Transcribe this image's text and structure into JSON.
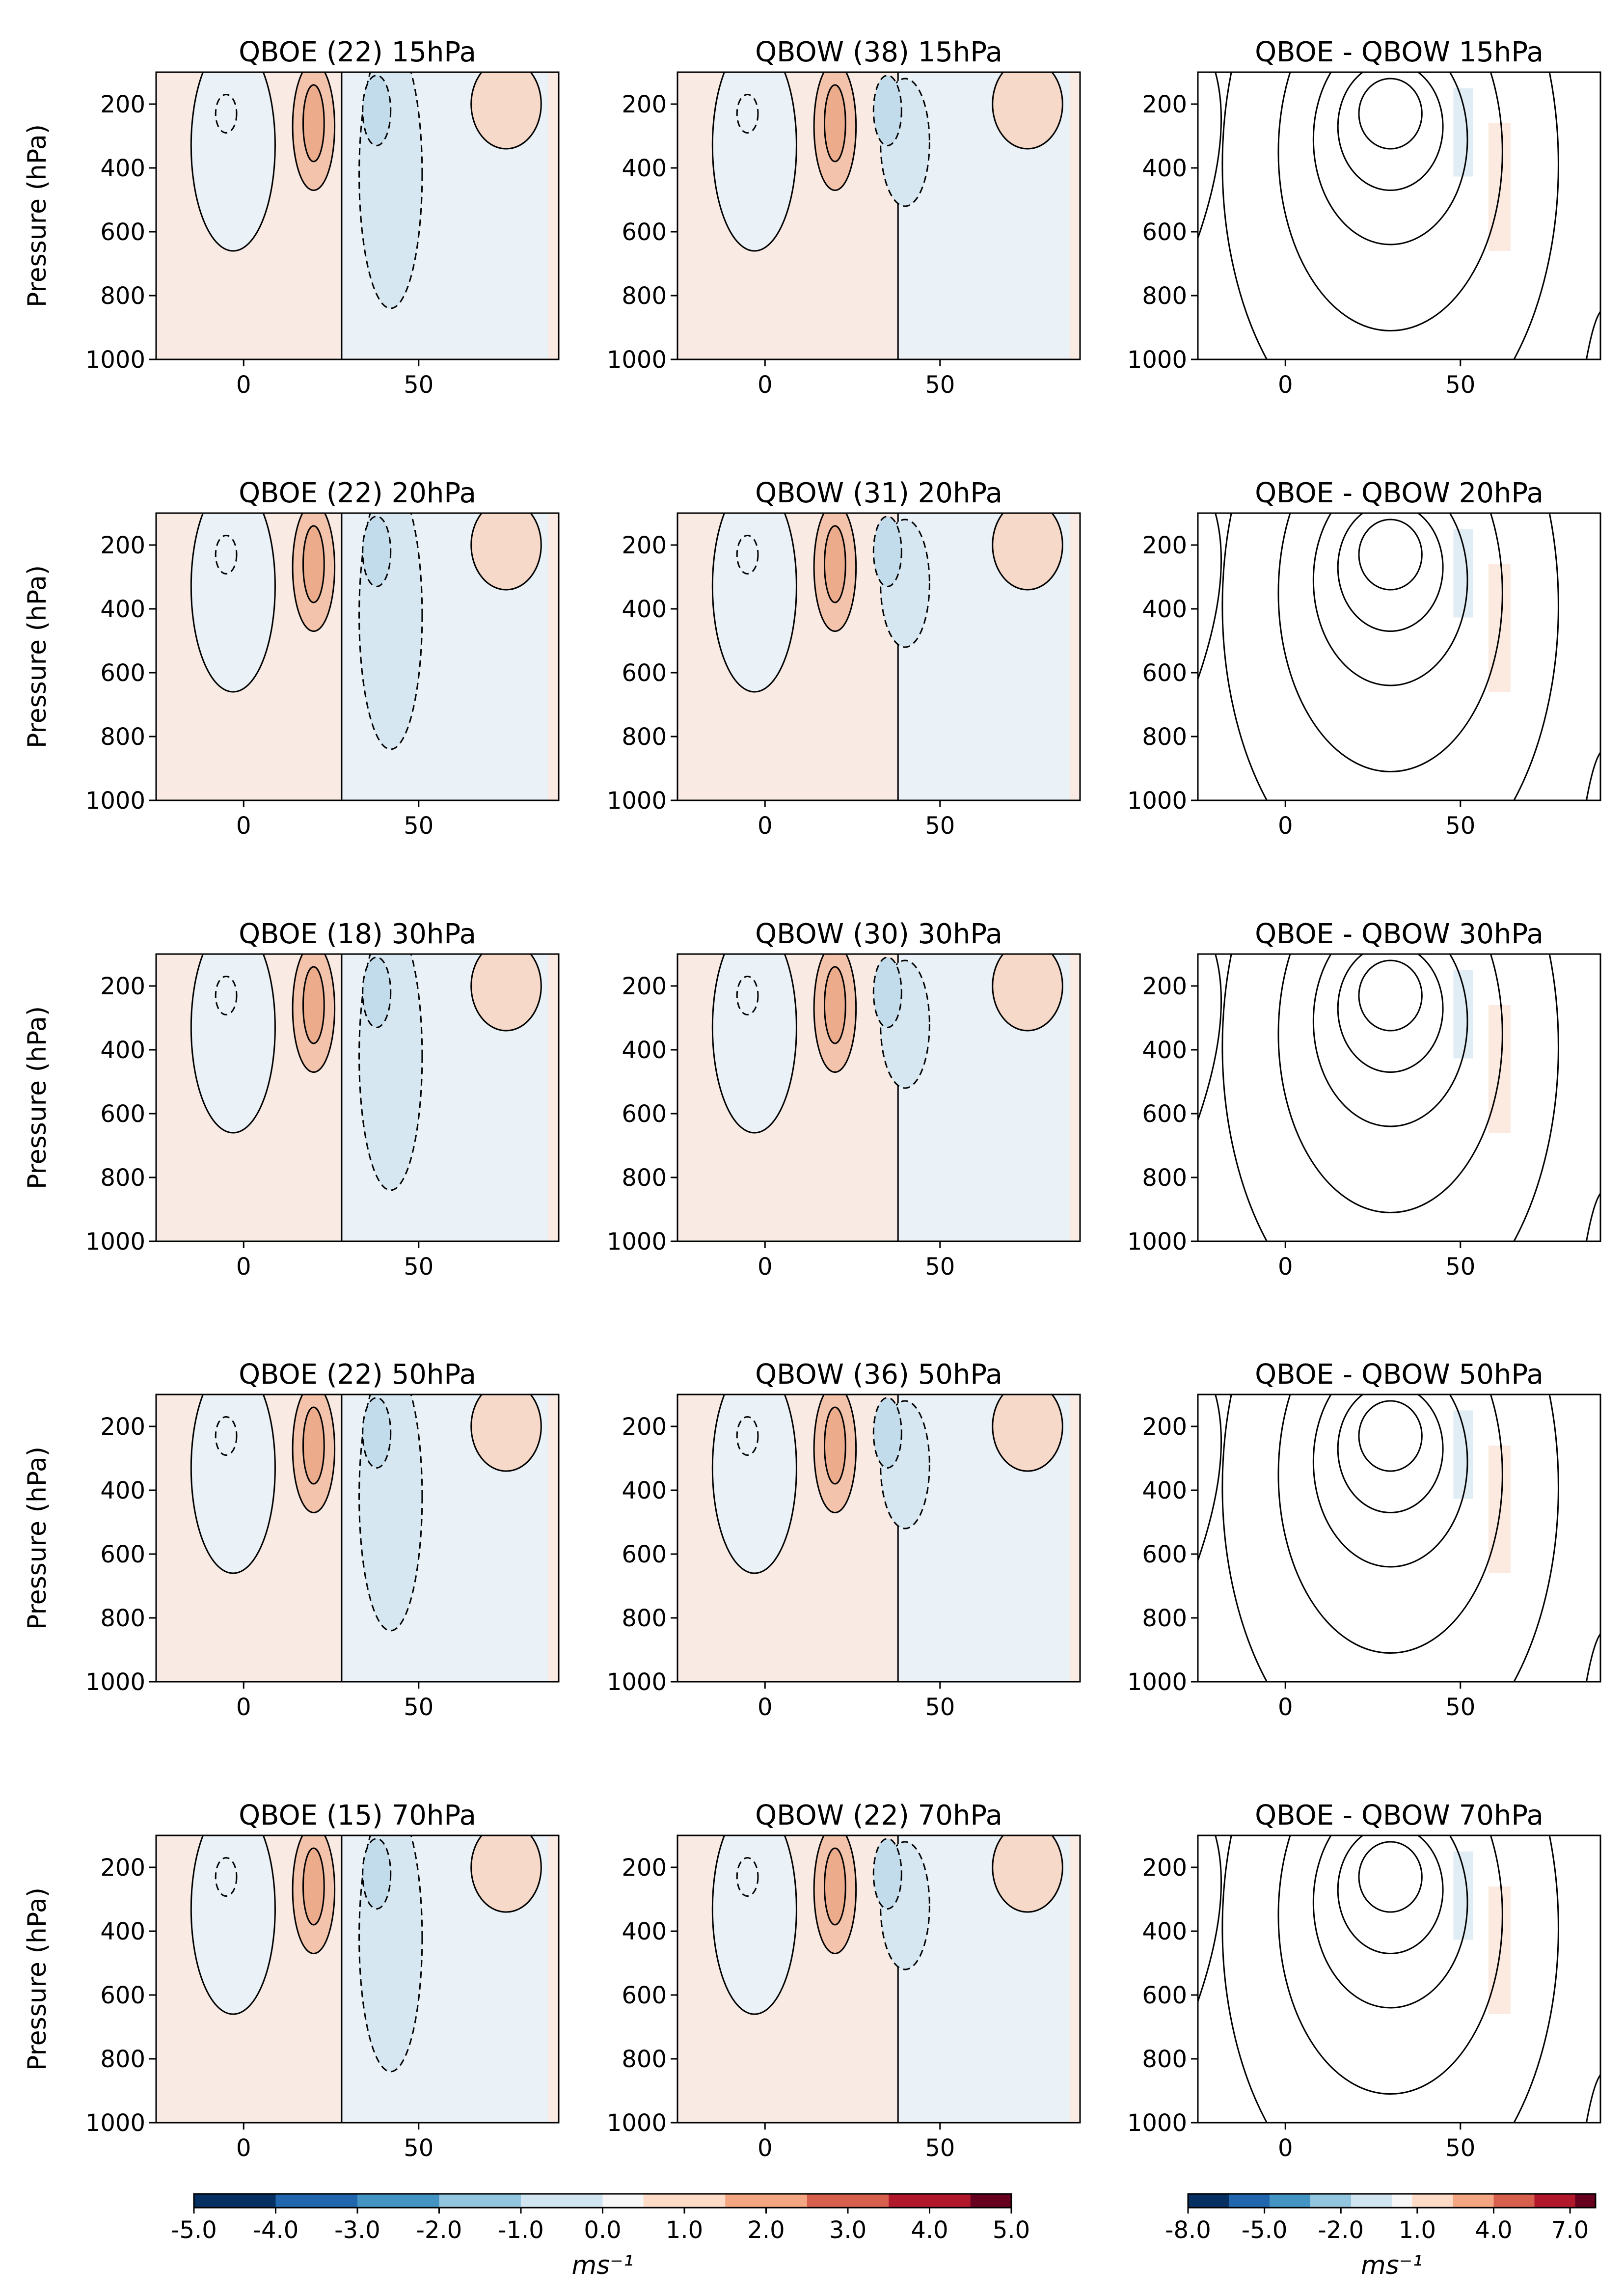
{
  "figure": {
    "colorbar_left": {
      "label": "ms⁻¹",
      "ticks": [
        "-5.0",
        "-4.0",
        "-3.0",
        "-2.0",
        "-1.0",
        "0.0",
        "1.0",
        "2.0",
        "3.0",
        "4.0",
        "5.0"
      ],
      "range": [
        -5,
        5
      ],
      "colors": [
        "#053061",
        "#2166ac",
        "#4393c3",
        "#92c5de",
        "#d1e5f0",
        "#f7f7f7",
        "#fddbc7",
        "#f4a582",
        "#d6604d",
        "#b2182b",
        "#67001f"
      ]
    },
    "colorbar_right": {
      "label": "ms⁻¹",
      "ticks": [
        "-8.0",
        "-5.0",
        "-2.0",
        "1.0",
        "4.0",
        "7.0"
      ],
      "range": [
        -8,
        8
      ],
      "colors": [
        "#053061",
        "#2166ac",
        "#4393c3",
        "#92c5de",
        "#d1e5f0",
        "#f7f7f7",
        "#fddbc7",
        "#f4a582",
        "#d6604d",
        "#b2182b",
        "#67001f"
      ]
    }
  },
  "chart_data": [
    {
      "type": "heatmap",
      "title": "QBOE (22) 15hPa",
      "ylabel": "Pressure (hPa)",
      "xlim": [
        -25,
        90
      ],
      "ylim": [
        1000,
        100
      ],
      "xticks": [
        "0",
        "50"
      ],
      "yticks": [
        "200",
        "400",
        "600",
        "800",
        "1000"
      ]
    },
    {
      "type": "heatmap",
      "title": "QBOW (38) 15hPa",
      "ylabel": "",
      "xlim": [
        -25,
        90
      ],
      "ylim": [
        1000,
        100
      ],
      "xticks": [
        "0",
        "50"
      ],
      "yticks": [
        "200",
        "400",
        "600",
        "800",
        "1000"
      ]
    },
    {
      "type": "heatmap",
      "title": "QBOE - QBOW 15hPa",
      "ylabel": "",
      "xlim": [
        -25,
        90
      ],
      "ylim": [
        1000,
        100
      ],
      "xticks": [
        "0",
        "50"
      ],
      "yticks": [
        "200",
        "400",
        "600",
        "800",
        "1000"
      ]
    },
    {
      "type": "heatmap",
      "title": "QBOE (22) 20hPa",
      "ylabel": "Pressure (hPa)",
      "xlim": [
        -25,
        90
      ],
      "ylim": [
        1000,
        100
      ],
      "xticks": [
        "0",
        "50"
      ],
      "yticks": [
        "200",
        "400",
        "600",
        "800",
        "1000"
      ]
    },
    {
      "type": "heatmap",
      "title": "QBOW (31) 20hPa",
      "ylabel": "",
      "xlim": [
        -25,
        90
      ],
      "ylim": [
        1000,
        100
      ],
      "xticks": [
        "0",
        "50"
      ],
      "yticks": [
        "200",
        "400",
        "600",
        "800",
        "1000"
      ]
    },
    {
      "type": "heatmap",
      "title": "QBOE - QBOW 20hPa",
      "ylabel": "",
      "xlim": [
        -25,
        90
      ],
      "ylim": [
        1000,
        100
      ],
      "xticks": [
        "0",
        "50"
      ],
      "yticks": [
        "200",
        "400",
        "600",
        "800",
        "1000"
      ]
    },
    {
      "type": "heatmap",
      "title": "QBOE (18) 30hPa",
      "ylabel": "Pressure (hPa)",
      "xlim": [
        -25,
        90
      ],
      "ylim": [
        1000,
        100
      ],
      "xticks": [
        "0",
        "50"
      ],
      "yticks": [
        "200",
        "400",
        "600",
        "800",
        "1000"
      ]
    },
    {
      "type": "heatmap",
      "title": "QBOW (30) 30hPa",
      "ylabel": "",
      "xlim": [
        -25,
        90
      ],
      "ylim": [
        1000,
        100
      ],
      "xticks": [
        "0",
        "50"
      ],
      "yticks": [
        "200",
        "400",
        "600",
        "800",
        "1000"
      ]
    },
    {
      "type": "heatmap",
      "title": "QBOE - QBOW 30hPa",
      "ylabel": "",
      "xlim": [
        -25,
        90
      ],
      "ylim": [
        1000,
        100
      ],
      "xticks": [
        "0",
        "50"
      ],
      "yticks": [
        "200",
        "400",
        "600",
        "800",
        "1000"
      ]
    },
    {
      "type": "heatmap",
      "title": "QBOE (22) 50hPa",
      "ylabel": "Pressure (hPa)",
      "xlim": [
        -25,
        90
      ],
      "ylim": [
        1000,
        100
      ],
      "xticks": [
        "0",
        "50"
      ],
      "yticks": [
        "200",
        "400",
        "600",
        "800",
        "1000"
      ]
    },
    {
      "type": "heatmap",
      "title": "QBOW (36) 50hPa",
      "ylabel": "",
      "xlim": [
        -25,
        90
      ],
      "ylim": [
        1000,
        100
      ],
      "xticks": [
        "0",
        "50"
      ],
      "yticks": [
        "200",
        "400",
        "600",
        "800",
        "1000"
      ]
    },
    {
      "type": "heatmap",
      "title": "QBOE - QBOW 50hPa",
      "ylabel": "",
      "xlim": [
        -25,
        90
      ],
      "ylim": [
        1000,
        100
      ],
      "xticks": [
        "0",
        "50"
      ],
      "yticks": [
        "200",
        "400",
        "600",
        "800",
        "1000"
      ]
    },
    {
      "type": "heatmap",
      "title": "QBOE (15) 70hPa",
      "ylabel": "Pressure (hPa)",
      "xlim": [
        -25,
        90
      ],
      "ylim": [
        1000,
        100
      ],
      "xticks": [
        "0",
        "50"
      ],
      "yticks": [
        "200",
        "400",
        "600",
        "800",
        "1000"
      ]
    },
    {
      "type": "heatmap",
      "title": "QBOW (22) 70hPa",
      "ylabel": "",
      "xlim": [
        -25,
        90
      ],
      "ylim": [
        1000,
        100
      ],
      "xticks": [
        "0",
        "50"
      ],
      "yticks": [
        "200",
        "400",
        "600",
        "800",
        "1000"
      ]
    },
    {
      "type": "heatmap",
      "title": "QBOE - QBOW 70hPa",
      "ylabel": "",
      "xlim": [
        -25,
        90
      ],
      "ylim": [
        1000,
        100
      ],
      "xticks": [
        "0",
        "50"
      ],
      "yticks": [
        "200",
        "400",
        "600",
        "800",
        "1000"
      ]
    }
  ]
}
